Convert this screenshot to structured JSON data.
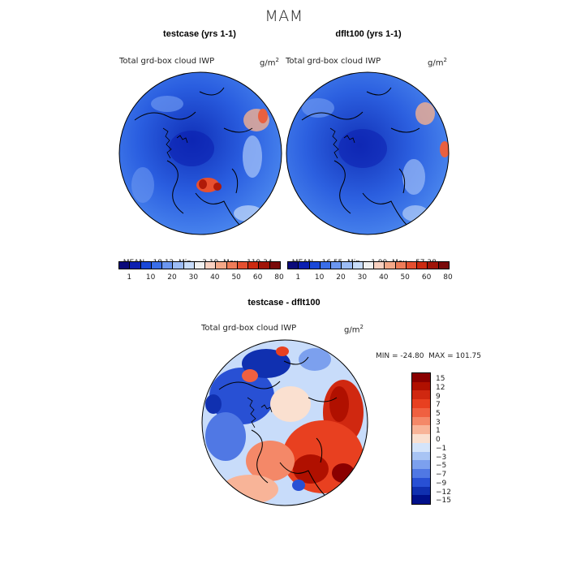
{
  "title": "MAM",
  "panels": [
    {
      "title": "testcase (yrs 1-1)",
      "variable": "Total grd-box cloud IWP",
      "units": "g/m",
      "units_exp": "2",
      "stats": {
        "mean_label": "MEAN=",
        "mean": "18.12",
        "min_label": "Min=",
        "min": "3.19",
        "max_label": "Max=",
        "max": "119.34"
      },
      "colorbar": {
        "labels": [
          "1",
          "10",
          "20",
          "30",
          "40",
          "50",
          "60",
          "80"
        ],
        "colors": [
          "#0a0a7a",
          "#0c1fb0",
          "#1a48d8",
          "#3a6ee8",
          "#6b96f0",
          "#9cbcf6",
          "#c8dcfa",
          "#f0f0f0",
          "#f8d0c0",
          "#f4a888",
          "#ee7c58",
          "#e45030",
          "#cc2a10",
          "#a01408",
          "#7a0a0a"
        ]
      }
    },
    {
      "title": "dflt100 (yrs 1-1)",
      "variable": "Total grd-box cloud IWP",
      "units": "g/m",
      "units_exp": "2",
      "stats": {
        "mean_label": "MEAN=",
        "mean": "16.55",
        "min_label": "Min=",
        "min": "1.99",
        "max_label": "Max=",
        "max": "57.38"
      },
      "colorbar": {
        "labels": [
          "1",
          "10",
          "20",
          "30",
          "40",
          "50",
          "60",
          "80"
        ],
        "colors": [
          "#0a0a7a",
          "#0c1fb0",
          "#1a48d8",
          "#3a6ee8",
          "#6b96f0",
          "#9cbcf6",
          "#c8dcfa",
          "#f0f0f0",
          "#f8d0c0",
          "#f4a888",
          "#ee7c58",
          "#e45030",
          "#cc2a10",
          "#a01408",
          "#7a0a0a"
        ]
      }
    }
  ],
  "difference": {
    "title": "testcase - dflt100",
    "variable": "Total grd-box cloud IWP",
    "units": "g/m",
    "units_exp": "2",
    "minmax": "MIN = -24.80  MAX = 101.75",
    "colorbar": {
      "labels": [
        "15",
        "12",
        "9",
        "7",
        "5",
        "3",
        "1",
        "0",
        "−1",
        "−3",
        "−5",
        "−7",
        "−9",
        "−12",
        "−15"
      ],
      "colors": [
        "#8a0000",
        "#b01000",
        "#d02810",
        "#e84020",
        "#f06040",
        "#f48868",
        "#f8b498",
        "#fae0d0",
        "#d4e4fa",
        "#a8c4f4",
        "#7ca0ee",
        "#5078e4",
        "#2850d4",
        "#1030b0",
        "#00108a"
      ]
    }
  }
}
